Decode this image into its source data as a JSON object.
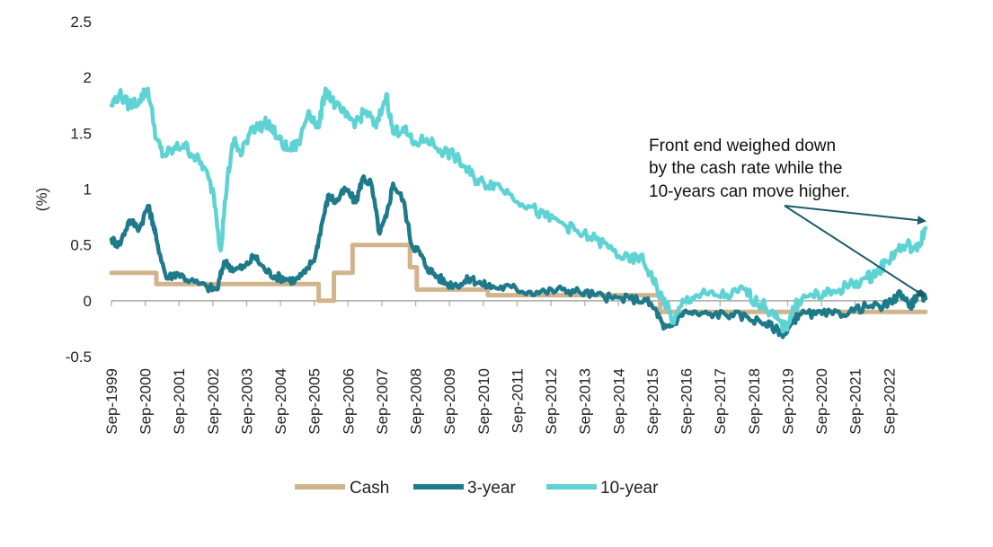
{
  "chart_data": {
    "type": "line",
    "title": "",
    "ylabel": "(%)",
    "xlabel": "",
    "ylim": [
      -0.5,
      2.5
    ],
    "yticks": [
      2.5,
      2,
      1.5,
      1,
      0.5,
      0,
      -0.5
    ],
    "ytick_labels": [
      "2.5",
      "2",
      "1.5",
      "1",
      "0.5",
      "0",
      "-0.5"
    ],
    "xrange": [
      1999.67,
      2023.75
    ],
    "xtick_labels": [
      "Sep-1999",
      "Sep-2000",
      "Sep-2001",
      "Sep-2002",
      "Sep-2003",
      "Sep-2004",
      "Sep-2005",
      "Sep-2006",
      "Sep-2007",
      "Sep-2008",
      "Sep-2009",
      "Sep-2010",
      "Sep-2011",
      "Sep-2012",
      "Sep-2013",
      "Sep-2014",
      "Sep-2015",
      "Sep-2016",
      "Sep-2017",
      "Sep-2018",
      "Sep-2019",
      "Sep-2020",
      "Sep-2021",
      "Sep-2022"
    ],
    "xtick_values": [
      1999.67,
      2000.67,
      2001.67,
      2002.67,
      2003.67,
      2004.67,
      2005.67,
      2006.67,
      2007.67,
      2008.67,
      2009.67,
      2010.67,
      2011.67,
      2012.67,
      2013.67,
      2014.67,
      2015.67,
      2016.67,
      2017.67,
      2018.67,
      2019.67,
      2020.67,
      2021.67,
      2022.67
    ],
    "legend": {
      "position": "bottom",
      "labels": [
        "Cash",
        "3-year",
        "10-year"
      ]
    },
    "series": [
      {
        "name": "Cash",
        "color": "#d2b48c",
        "x": [
          1999.67,
          2001.0,
          2001.0,
          2003.2,
          2003.2,
          2005.8,
          2005.8,
          2006.25,
          2006.25,
          2006.8,
          2006.8,
          2008.5,
          2008.5,
          2008.7,
          2008.7,
          2010.8,
          2010.8,
          2015.9,
          2015.9,
          2023.75
        ],
        "y": [
          0.25,
          0.25,
          0.15,
          0.15,
          0.15,
          0.15,
          0.0,
          0.0,
          0.25,
          0.25,
          0.5,
          0.5,
          0.3,
          0.3,
          0.1,
          0.1,
          0.05,
          0.05,
          -0.1,
          -0.1
        ]
      },
      {
        "name": "3-year",
        "color": "#1e7a8a",
        "x": [
          1999.67,
          1999.9,
          2000.2,
          2000.5,
          2000.75,
          2000.9,
          2001.0,
          2001.3,
          2001.6,
          2002.0,
          2002.5,
          2002.8,
          2003.0,
          2003.3,
          2003.6,
          2003.9,
          2004.2,
          2004.5,
          2004.8,
          2005.1,
          2005.4,
          2005.7,
          2005.9,
          2006.1,
          2006.3,
          2006.6,
          2006.9,
          2007.1,
          2007.35,
          2007.6,
          2007.8,
          2008.0,
          2008.3,
          2008.55,
          2008.75,
          2009.0,
          2009.3,
          2009.6,
          2010.0,
          2010.3,
          2010.6,
          2011.0,
          2011.5,
          2012.0,
          2012.5,
          2013.0,
          2013.5,
          2014.0,
          2014.5,
          2015.0,
          2015.5,
          2015.8,
          2016.0,
          2016.3,
          2016.6,
          2017.0,
          2017.5,
          2018.0,
          2018.5,
          2019.0,
          2019.3,
          2019.6,
          2019.8,
          2020.0,
          2020.5,
          2021.0,
          2021.5,
          2022.0,
          2022.5,
          2022.8,
          2023.0,
          2023.3,
          2023.5,
          2023.75
        ],
        "y": [
          0.55,
          0.5,
          0.72,
          0.65,
          0.85,
          0.7,
          0.55,
          0.2,
          0.25,
          0.18,
          0.12,
          0.1,
          0.35,
          0.28,
          0.3,
          0.4,
          0.28,
          0.22,
          0.2,
          0.18,
          0.25,
          0.4,
          0.7,
          0.95,
          0.88,
          1.0,
          0.88,
          1.1,
          1.05,
          0.6,
          0.75,
          1.05,
          0.9,
          0.5,
          0.45,
          0.3,
          0.22,
          0.15,
          0.15,
          0.2,
          0.15,
          0.12,
          0.12,
          0.08,
          0.08,
          0.1,
          0.08,
          0.05,
          0.02,
          0.02,
          0.0,
          -0.1,
          -0.25,
          -0.2,
          -0.1,
          -0.12,
          -0.12,
          -0.12,
          -0.15,
          -0.2,
          -0.25,
          -0.3,
          -0.2,
          -0.12,
          -0.12,
          -0.12,
          -0.1,
          -0.05,
          -0.05,
          0.0,
          0.08,
          -0.05,
          0.05,
          0.02
        ]
      },
      {
        "name": "10-year",
        "color": "#5fd3d3",
        "x": [
          1999.67,
          1999.9,
          2000.2,
          2000.5,
          2000.75,
          2001.0,
          2001.2,
          2001.5,
          2001.8,
          2002.1,
          2002.4,
          2002.7,
          2002.9,
          2003.1,
          2003.3,
          2003.5,
          2003.8,
          2004.0,
          2004.3,
          2004.6,
          2004.9,
          2005.2,
          2005.5,
          2005.8,
          2006.0,
          2006.3,
          2006.6,
          2006.9,
          2007.2,
          2007.5,
          2007.8,
          2008.0,
          2008.3,
          2008.6,
          2009.0,
          2009.4,
          2009.8,
          2010.1,
          2010.4,
          2010.7,
          2011.0,
          2011.5,
          2012.0,
          2012.5,
          2013.0,
          2013.5,
          2014.0,
          2014.5,
          2015.0,
          2015.3,
          2015.6,
          2015.9,
          2016.1,
          2016.3,
          2016.6,
          2017.0,
          2017.5,
          2018.0,
          2018.4,
          2018.7,
          2019.0,
          2019.3,
          2019.6,
          2019.8,
          2020.0,
          2020.4,
          2020.8,
          2021.2,
          2021.6,
          2022.0,
          2022.3,
          2022.6,
          2022.9,
          2023.2,
          2023.5,
          2023.75
        ],
        "y": [
          1.75,
          1.85,
          1.75,
          1.8,
          1.9,
          1.45,
          1.3,
          1.35,
          1.4,
          1.3,
          1.2,
          0.95,
          0.45,
          1.1,
          1.45,
          1.3,
          1.55,
          1.55,
          1.6,
          1.45,
          1.35,
          1.4,
          1.7,
          1.55,
          1.9,
          1.75,
          1.65,
          1.6,
          1.7,
          1.55,
          1.85,
          1.5,
          1.55,
          1.4,
          1.45,
          1.35,
          1.3,
          1.2,
          1.1,
          1.05,
          1.05,
          0.95,
          0.85,
          0.75,
          0.7,
          0.6,
          0.55,
          0.45,
          0.35,
          0.4,
          0.25,
          0.05,
          -0.05,
          -0.2,
          0.0,
          0.05,
          0.05,
          0.05,
          0.1,
          0.0,
          -0.05,
          -0.15,
          -0.25,
          -0.1,
          0.0,
          0.05,
          0.05,
          0.1,
          0.15,
          0.2,
          0.25,
          0.35,
          0.45,
          0.5,
          0.45,
          0.65
        ]
      }
    ],
    "annotations": [
      {
        "lines": [
          "Front end weighed down",
          "by the cash rate while the",
          "10-years can move higher."
        ]
      }
    ]
  }
}
